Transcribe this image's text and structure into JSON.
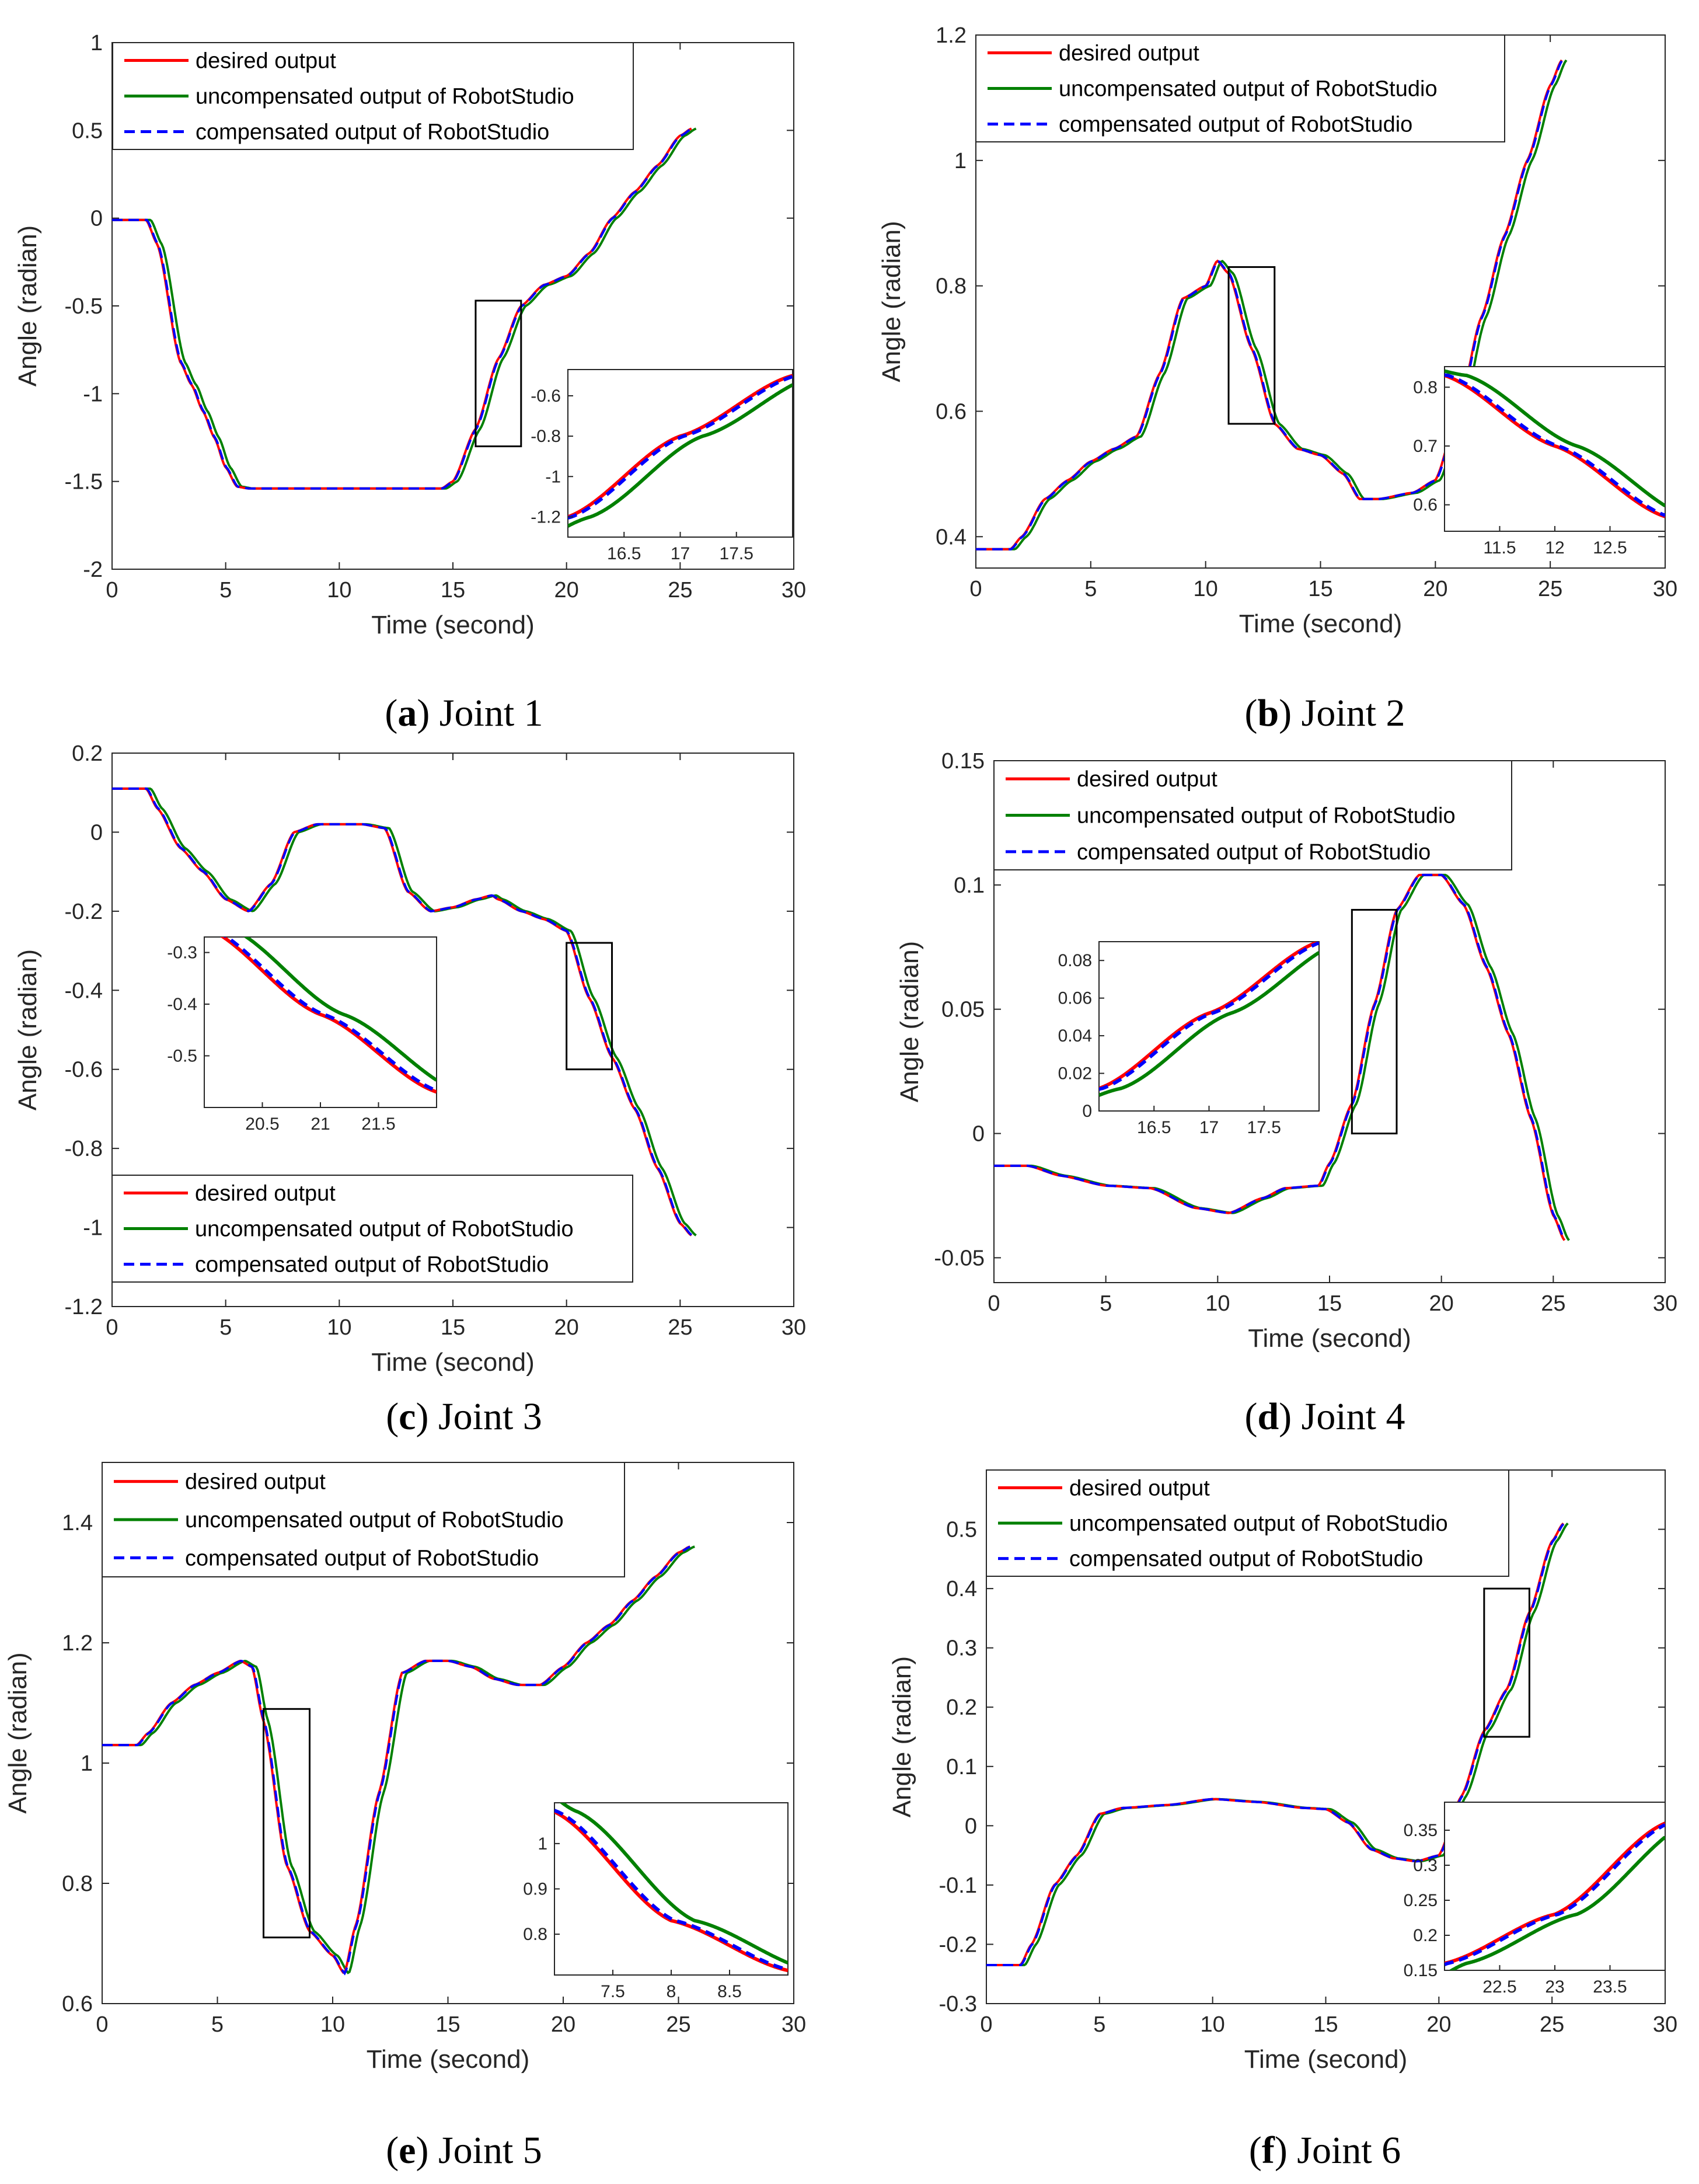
{
  "legend": {
    "desired": "desired output",
    "uncompensated": "uncompensated output of RobotStudio",
    "compensated": "compensated output of RobotStudio"
  },
  "colors": {
    "desired": "#ff0000",
    "uncompensated": "#008000",
    "compensated": "#0000ff"
  },
  "chart_data": [
    {
      "type": "line",
      "caption_letter": "a",
      "caption_text": "Joint 1",
      "xlabel": "Time (second)",
      "ylabel": "Angle (radian)",
      "xlim": [
        0,
        30
      ],
      "ylim": [
        -2,
        1
      ],
      "xticks": [
        "0",
        "5",
        "10",
        "15",
        "20",
        "25",
        "30"
      ],
      "yticks": [
        "-2",
        "-1.5",
        "-1",
        "-0.5",
        "0",
        "0.5",
        "1"
      ],
      "series_points": {
        "t": [
          0,
          1.5,
          2,
          3,
          3.5,
          4,
          4.5,
          5,
          5.5,
          6,
          10,
          14.5,
          15,
          16,
          17,
          18,
          19,
          20,
          21,
          22,
          23,
          24,
          25,
          25.5
        ],
        "y": [
          -0.01,
          -0.01,
          -0.15,
          -0.82,
          -0.95,
          -1.1,
          -1.25,
          -1.42,
          -1.53,
          -1.54,
          -1.54,
          -1.54,
          -1.5,
          -1.2,
          -0.8,
          -0.5,
          -0.38,
          -0.33,
          -0.2,
          0.0,
          0.15,
          0.3,
          0.47,
          0.51
        ]
      },
      "lag": 0.2,
      "zoom_box": {
        "x": [
          16,
          18
        ],
        "y": [
          -1.3,
          -0.47
        ]
      },
      "inset": {
        "xlim": [
          16,
          18
        ],
        "ylim": [
          -1.3,
          -0.47
        ],
        "xticks": [
          "16.5",
          "17",
          "17.5"
        ],
        "yticks": [
          "-1.2",
          "-1",
          "-0.8",
          "-0.6"
        ],
        "placement": "bottom-right"
      },
      "legend_placement": "top-left"
    },
    {
      "type": "line",
      "caption_letter": "b",
      "caption_text": "Joint 2",
      "xlabel": "Time (second)",
      "ylabel": "Angle (radian)",
      "xlim": [
        0,
        30
      ],
      "ylim": [
        0.35,
        1.2
      ],
      "xticks": [
        "0",
        "5",
        "10",
        "15",
        "20",
        "25",
        "30"
      ],
      "yticks": [
        "0.4",
        "0.6",
        "0.8",
        "1",
        "1.2"
      ],
      "series_points": {
        "t": [
          0,
          1.5,
          2,
          3,
          4,
          5,
          6,
          7,
          8,
          9,
          10,
          10.5,
          11,
          12,
          13,
          14,
          15,
          16,
          16.7,
          17.5,
          19,
          20,
          21,
          22,
          23,
          24,
          25,
          25.5
        ],
        "y": [
          0.38,
          0.38,
          0.4,
          0.46,
          0.49,
          0.52,
          0.54,
          0.56,
          0.66,
          0.78,
          0.8,
          0.84,
          0.82,
          0.7,
          0.58,
          0.54,
          0.53,
          0.5,
          0.46,
          0.46,
          0.47,
          0.49,
          0.6,
          0.75,
          0.88,
          1.0,
          1.12,
          1.16
        ]
      },
      "lag": 0.2,
      "zoom_box": {
        "x": [
          11,
          13
        ],
        "y": [
          0.58,
          0.83
        ]
      },
      "inset": {
        "xlim": [
          11,
          13
        ],
        "ylim": [
          0.555,
          0.835
        ],
        "xticks": [
          "11.5",
          "12",
          "12.5"
        ],
        "yticks": [
          "0.6",
          "0.7",
          "0.8"
        ],
        "placement": "bottom-right"
      },
      "legend_placement": "top-left"
    },
    {
      "type": "line",
      "caption_letter": "c",
      "caption_text": "Joint 3",
      "xlabel": "Time (second)",
      "ylabel": "Angle (radian)",
      "xlim": [
        0,
        30
      ],
      "ylim": [
        -1.2,
        0.2
      ],
      "xticks": [
        "0",
        "5",
        "10",
        "15",
        "20",
        "25",
        "30"
      ],
      "yticks": [
        "-1.2",
        "-1",
        "-0.8",
        "-0.6",
        "-0.4",
        "-0.2",
        "0",
        "0.2"
      ],
      "series_points": {
        "t": [
          0,
          1.5,
          2,
          3,
          4,
          5,
          6,
          7,
          8,
          9,
          10,
          11,
          12,
          13,
          14,
          15,
          16,
          16.7,
          17,
          18,
          19,
          20,
          21,
          22,
          23,
          24,
          25,
          25.5
        ],
        "y": [
          0.11,
          0.11,
          0.06,
          -0.04,
          -0.1,
          -0.17,
          -0.2,
          -0.13,
          0.0,
          0.02,
          0.02,
          0.02,
          0.01,
          -0.15,
          -0.2,
          -0.19,
          -0.17,
          -0.16,
          -0.17,
          -0.2,
          -0.22,
          -0.25,
          -0.42,
          -0.57,
          -0.7,
          -0.85,
          -0.99,
          -1.02
        ]
      },
      "lag": 0.2,
      "zoom_box": {
        "x": [
          20,
          22
        ],
        "y": [
          -0.6,
          -0.28
        ]
      },
      "inset": {
        "xlim": [
          20,
          22
        ],
        "ylim": [
          -0.6,
          -0.27
        ],
        "xticks": [
          "20.5",
          "21",
          "21.5"
        ],
        "yticks": [
          "-0.5",
          "-0.4",
          "-0.3"
        ],
        "placement": "middle-left"
      },
      "legend_placement": "bottom-left"
    },
    {
      "type": "line",
      "caption_letter": "d",
      "caption_text": "Joint 4",
      "xlabel": "Time (second)",
      "ylabel": "Angle (radian)",
      "xlim": [
        0,
        30
      ],
      "ylim": [
        -0.06,
        0.15
      ],
      "xticks": [
        "0",
        "5",
        "10",
        "15",
        "20",
        "25",
        "30"
      ],
      "yticks": [
        "-0.05",
        "0",
        "0.05",
        "0.1",
        "0.15"
      ],
      "series_points": {
        "t": [
          0,
          1.5,
          3,
          5,
          7,
          9,
          10.5,
          12,
          13,
          14.5,
          15,
          16,
          17,
          18,
          19,
          20,
          21,
          22,
          23,
          24,
          25,
          25.5
        ],
        "y": [
          -0.013,
          -0.013,
          -0.017,
          -0.021,
          -0.022,
          -0.03,
          -0.032,
          -0.026,
          -0.022,
          -0.021,
          -0.012,
          0.012,
          0.052,
          0.09,
          0.104,
          0.104,
          0.092,
          0.067,
          0.04,
          0.006,
          -0.033,
          -0.043
        ]
      },
      "lag": 0.2,
      "zoom_box": {
        "x": [
          16,
          18
        ],
        "y": [
          0,
          0.09
        ]
      },
      "inset": {
        "xlim": [
          16,
          18
        ],
        "ylim": [
          0,
          0.09
        ],
        "xticks": [
          "16.5",
          "17",
          "17.5"
        ],
        "yticks": [
          "0",
          "0.02",
          "0.04",
          "0.06",
          "0.08"
        ],
        "placement": "top-left"
      },
      "legend_placement": "top-left"
    },
    {
      "type": "line",
      "caption_letter": "e",
      "caption_text": "Joint 5",
      "xlabel": "Time (second)",
      "ylabel": "Angle (radian)",
      "xlim": [
        0,
        30
      ],
      "ylim": [
        0.6,
        1.5
      ],
      "xticks": [
        "0",
        "5",
        "10",
        "15",
        "20",
        "25",
        "30"
      ],
      "yticks": [
        "0.6",
        "0.8",
        "1",
        "1.2",
        "1.4"
      ],
      "series_points": {
        "t": [
          0,
          1.5,
          2,
          3,
          4,
          5,
          6,
          6.5,
          7,
          8,
          9,
          10,
          10.5,
          11,
          12,
          13,
          14,
          15,
          16,
          17,
          18,
          19,
          20,
          21,
          22,
          23,
          24,
          25,
          25.5
        ],
        "y": [
          1.03,
          1.03,
          1.05,
          1.1,
          1.13,
          1.15,
          1.17,
          1.16,
          1.07,
          0.83,
          0.72,
          0.68,
          0.65,
          0.73,
          0.95,
          1.15,
          1.17,
          1.17,
          1.16,
          1.14,
          1.13,
          1.13,
          1.16,
          1.2,
          1.23,
          1.27,
          1.31,
          1.35,
          1.36
        ]
      },
      "lag": 0.2,
      "zoom_box": {
        "x": [
          7,
          9
        ],
        "y": [
          0.71,
          1.09
        ]
      },
      "inset": {
        "xlim": [
          7,
          9
        ],
        "ylim": [
          0.71,
          1.09
        ],
        "xticks": [
          "7.5",
          "8",
          "8.5"
        ],
        "yticks": [
          "0.8",
          "0.9",
          "1"
        ],
        "placement": "bottom-right"
      },
      "legend_placement": "top-left"
    },
    {
      "type": "line",
      "caption_letter": "f",
      "caption_text": "Joint 6",
      "xlabel": "Time (second)",
      "ylabel": "Angle (radian)",
      "xlim": [
        0,
        30
      ],
      "ylim": [
        -0.3,
        0.6
      ],
      "xticks": [
        "0",
        "5",
        "10",
        "15",
        "20",
        "25",
        "30"
      ],
      "yticks": [
        "-0.3",
        "-0.2",
        "-0.1",
        "0",
        "0.1",
        "0.2",
        "0.3",
        "0.4",
        "0.5"
      ],
      "series_points": {
        "t": [
          0,
          1.5,
          2,
          3,
          4,
          5,
          6,
          8,
          10,
          12,
          14,
          15,
          16,
          17,
          18,
          19,
          20,
          21,
          22,
          23,
          24,
          25,
          25.5
        ],
        "y": [
          -0.235,
          -0.235,
          -0.2,
          -0.1,
          -0.05,
          0.02,
          0.03,
          0.035,
          0.045,
          0.04,
          0.03,
          0.028,
          0.005,
          -0.04,
          -0.055,
          -0.06,
          -0.05,
          0.05,
          0.16,
          0.23,
          0.36,
          0.48,
          0.51
        ]
      },
      "lag": 0.2,
      "zoom_box": {
        "x": [
          22,
          24
        ],
        "y": [
          0.15,
          0.4
        ]
      },
      "inset": {
        "xlim": [
          22,
          24
        ],
        "ylim": [
          0.15,
          0.39
        ],
        "xticks": [
          "22.5",
          "23",
          "23.5"
        ],
        "yticks": [
          "0.15",
          "0.2",
          "0.25",
          "0.3",
          "0.35"
        ],
        "placement": "bottom-right"
      },
      "legend_placement": "top-left"
    }
  ]
}
